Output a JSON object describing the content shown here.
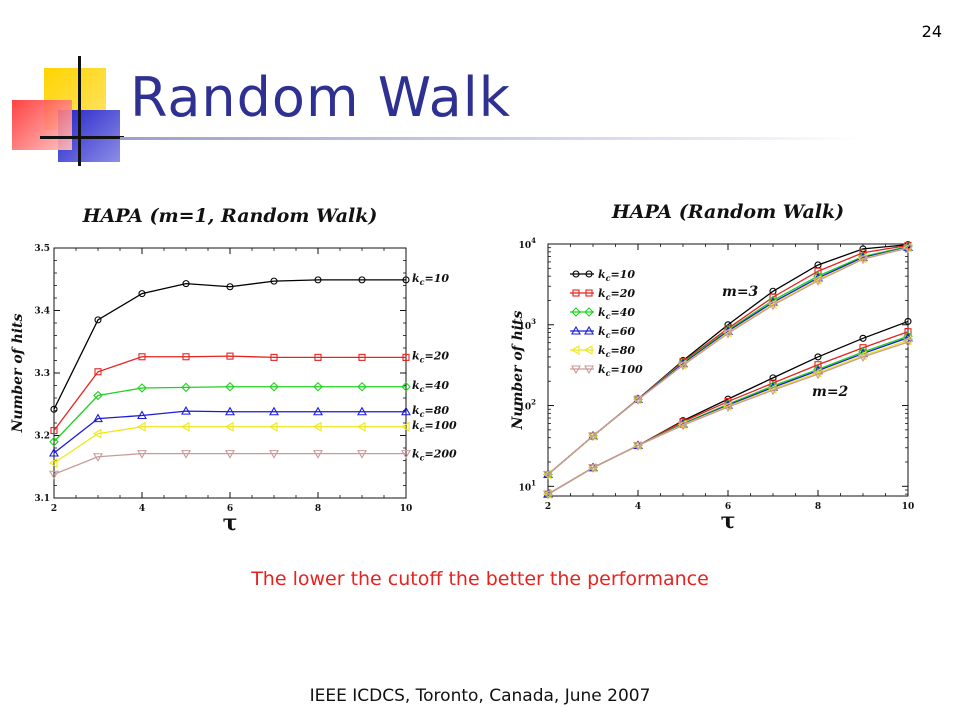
{
  "slide_number": "24",
  "title": "Random Walk",
  "caption": "The lower the cutoff the better the performance",
  "footer": "IEEE ICDCS, Toronto, Canada, June 2007",
  "colors": {
    "title": "#2e3192",
    "caption": "#e8231f"
  },
  "chart_data": [
    {
      "type": "line",
      "title": "HAPA (m=1, Random Walk)",
      "xlabel": "τ",
      "ylabel": "Number of hits",
      "xlim": [
        2,
        10
      ],
      "ylim": [
        3.1,
        3.5
      ],
      "x_ticks": [
        "2",
        "4",
        "6",
        "8",
        "10"
      ],
      "y_ticks": [
        "3.1",
        "3.2",
        "3.3",
        "3.4",
        "3.5"
      ],
      "legend": "right of lines",
      "x": [
        2,
        3,
        4,
        5,
        6,
        7,
        8,
        9,
        10
      ],
      "series": [
        {
          "name": "kc=10",
          "label_sub": "c",
          "label_pre": "k",
          "label_post": "=10",
          "color": "#000000",
          "marker": "circle",
          "values": [
            3.242,
            3.385,
            3.427,
            3.443,
            3.438,
            3.447,
            3.449,
            3.449,
            3.449
          ]
        },
        {
          "name": "kc=20",
          "label_sub": "c",
          "label_pre": "k",
          "label_post": "=20",
          "color": "#e8231f",
          "marker": "square",
          "values": [
            3.208,
            3.302,
            3.326,
            3.326,
            3.327,
            3.325,
            3.325,
            3.325,
            3.325
          ]
        },
        {
          "name": "kc=40",
          "label_sub": "c",
          "label_pre": "k",
          "label_post": "=40",
          "color": "#1fd21f",
          "marker": "diamond",
          "values": [
            3.19,
            3.264,
            3.276,
            3.277,
            3.278,
            3.278,
            3.278,
            3.278,
            3.278
          ]
        },
        {
          "name": "kc=80",
          "label_sub": "c",
          "label_pre": "k",
          "label_post": "=80",
          "color": "#1a1adc",
          "marker": "triangle-up",
          "values": [
            3.172,
            3.227,
            3.232,
            3.239,
            3.238,
            3.238,
            3.238,
            3.238,
            3.238
          ]
        },
        {
          "name": "kc=100",
          "label_sub": "c",
          "label_pre": "k",
          "label_post": "=100",
          "color": "#f0e81a",
          "marker": "triangle-left",
          "values": [
            3.156,
            3.203,
            3.214,
            3.214,
            3.214,
            3.214,
            3.214,
            3.214,
            3.214
          ]
        },
        {
          "name": "kc=200",
          "label_sub": "c",
          "label_pre": "k",
          "label_post": "=200",
          "color": "#c99a9a",
          "marker": "triangle-down",
          "values": [
            3.138,
            3.166,
            3.171,
            3.171,
            3.171,
            3.171,
            3.171,
            3.171,
            3.171
          ]
        }
      ]
    },
    {
      "type": "line",
      "title": "HAPA (Random Walk)",
      "xlabel": "τ",
      "ylabel": "Number of hits",
      "xlim": [
        2,
        10
      ],
      "ylim": [
        10,
        10000
      ],
      "yscale": "log",
      "x_ticks": [
        "2",
        "4",
        "6",
        "8",
        "10"
      ],
      "y_ticks": [
        {
          "base": "10",
          "exp": "1"
        },
        {
          "base": "10",
          "exp": "2"
        },
        {
          "base": "10",
          "exp": "3"
        },
        {
          "base": "10",
          "exp": "4"
        }
      ],
      "legend": "top-left",
      "annotations": [
        "m=3",
        "m=2"
      ],
      "x": [
        2,
        3,
        4,
        5,
        6,
        7,
        8,
        9,
        10
      ],
      "legend_entries": [
        {
          "name": "kc=10",
          "label_pre": "k",
          "label_sub": "c",
          "label_post": "=10",
          "color": "#000000",
          "marker": "circle"
        },
        {
          "name": "kc=20",
          "label_pre": "k",
          "label_sub": "c",
          "label_post": "=20",
          "color": "#e8231f",
          "marker": "square"
        },
        {
          "name": "kc=40",
          "label_pre": "k",
          "label_sub": "c",
          "label_post": "=40",
          "color": "#1fd21f",
          "marker": "diamond"
        },
        {
          "name": "kc=60",
          "label_pre": "k",
          "label_sub": "c",
          "label_post": "=60",
          "color": "#1a1adc",
          "marker": "triangle-up"
        },
        {
          "name": "kc=80",
          "label_pre": "k",
          "label_sub": "c",
          "label_post": "=80",
          "color": "#f0e81a",
          "marker": "triangle-left"
        },
        {
          "name": "kc=100",
          "label_pre": "k",
          "label_sub": "c",
          "label_post": "=100",
          "color": "#c99a9a",
          "marker": "triangle-down"
        }
      ],
      "series": [
        {
          "group": "m=3",
          "name": "kc=10",
          "color": "#000000",
          "marker": "circle",
          "values": [
            14,
            42,
            120,
            360,
            1000,
            2600,
            5500,
            8700,
            9800
          ]
        },
        {
          "group": "m=3",
          "name": "kc=20",
          "color": "#e8231f",
          "marker": "square",
          "values": [
            14,
            42,
            120,
            350,
            900,
            2200,
            4600,
            7800,
            9600
          ]
        },
        {
          "group": "m=3",
          "name": "kc=40",
          "color": "#1fd21f",
          "marker": "diamond",
          "values": [
            14,
            42,
            119,
            340,
            860,
            2000,
            4000,
            7000,
            9300
          ]
        },
        {
          "group": "m=3",
          "name": "kc=60",
          "color": "#1a1adc",
          "marker": "triangle-up",
          "values": [
            14,
            42,
            119,
            330,
            830,
            1900,
            3800,
            6800,
            9100
          ]
        },
        {
          "group": "m=3",
          "name": "kc=80",
          "color": "#f0e81a",
          "marker": "triangle-left",
          "values": [
            14,
            42,
            118,
            320,
            800,
            1800,
            3600,
            6600,
            9000
          ]
        },
        {
          "group": "m=3",
          "name": "kc=100",
          "color": "#c99a9a",
          "marker": "triangle-down",
          "values": [
            14,
            42,
            118,
            315,
            780,
            1750,
            3500,
            6500,
            8900
          ]
        },
        {
          "group": "m=2",
          "name": "kc=10",
          "color": "#000000",
          "marker": "circle",
          "values": [
            8,
            17,
            32,
            65,
            120,
            220,
            400,
            680,
            1100
          ]
        },
        {
          "group": "m=2",
          "name": "kc=20",
          "color": "#e8231f",
          "marker": "square",
          "values": [
            8,
            17,
            32,
            63,
            112,
            190,
            320,
            520,
            820
          ]
        },
        {
          "group": "m=2",
          "name": "kc=40",
          "color": "#1fd21f",
          "marker": "diamond",
          "values": [
            8,
            17,
            32,
            60,
            104,
            175,
            280,
            460,
            720
          ]
        },
        {
          "group": "m=2",
          "name": "kc=60",
          "color": "#1a1adc",
          "marker": "triangle-up",
          "values": [
            8,
            17,
            32,
            59,
            101,
            168,
            270,
            440,
            690
          ]
        },
        {
          "group": "m=2",
          "name": "kc=80",
          "color": "#f0e81a",
          "marker": "triangle-left",
          "values": [
            8,
            17,
            32,
            58,
            98,
            160,
            255,
            415,
            640
          ]
        },
        {
          "group": "m=2",
          "name": "kc=100",
          "color": "#c99a9a",
          "marker": "triangle-down",
          "values": [
            8,
            17,
            32,
            57,
            96,
            155,
            245,
            400,
            610
          ]
        }
      ]
    }
  ]
}
